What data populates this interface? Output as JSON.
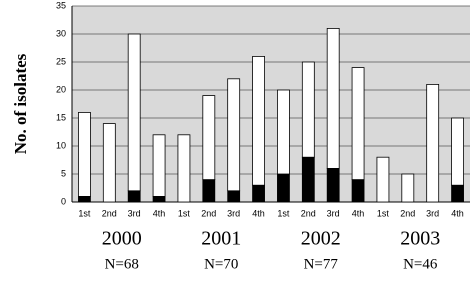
{
  "chart_data": {
    "type": "bar",
    "stacked": true,
    "y_label": "No. of isolates",
    "categories": [
      "1st",
      "2nd",
      "3rd",
      "4th",
      "1st",
      "2nd",
      "3rd",
      "4th",
      "1st",
      "2nd",
      "3rd",
      "4th",
      "1st",
      "2nd",
      "3rd",
      "4th"
    ],
    "groups": [
      {
        "label": "2000",
        "n": "N=68"
      },
      {
        "label": "2001",
        "n": "N=70"
      },
      {
        "label": "2002",
        "n": "N=77"
      },
      {
        "label": "2003",
        "n": "N=46"
      }
    ],
    "series": [
      {
        "color": "#000000",
        "values": [
          1,
          0,
          2,
          1,
          0,
          4,
          2,
          3,
          5,
          8,
          6,
          4,
          0,
          0,
          0,
          3
        ]
      },
      {
        "color": "#ffffff",
        "values": [
          15,
          14,
          28,
          11,
          12,
          15,
          20,
          23,
          15,
          17,
          25,
          20,
          8,
          5,
          21,
          12
        ]
      }
    ],
    "ylim": [
      0,
      35
    ],
    "yticks": [
      0,
      5,
      10,
      15,
      20,
      25,
      30,
      35
    ],
    "grid": true,
    "background": "#d9d9d9"
  }
}
